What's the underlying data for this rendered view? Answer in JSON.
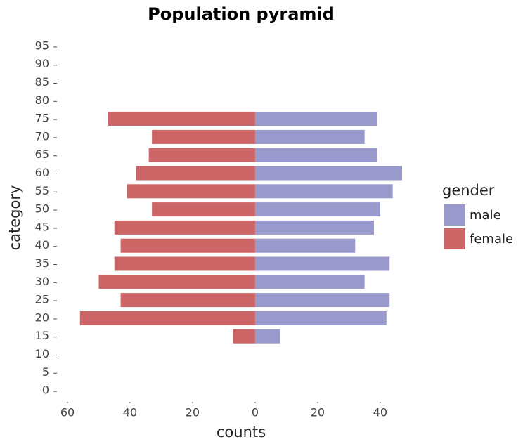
{
  "chart_data": {
    "type": "bar",
    "orientation": "horizontal",
    "title": "Population pyramid",
    "x_label": "counts",
    "y_label": "category",
    "legend_title": "gender",
    "categories": [
      "0",
      "5",
      "10",
      "15",
      "20",
      "25",
      "30",
      "35",
      "40",
      "45",
      "50",
      "55",
      "60",
      "65",
      "70",
      "75",
      "80",
      "85",
      "90",
      "95"
    ],
    "series": [
      {
        "name": "male",
        "color": "#9999cc",
        "values": [
          null,
          null,
          null,
          8,
          42,
          43,
          35,
          43,
          32,
          38,
          40,
          44,
          47,
          39,
          35,
          39,
          null,
          null,
          null,
          null
        ]
      },
      {
        "name": "female",
        "color": "#cc6666",
        "values": [
          null,
          null,
          null,
          -7,
          -56,
          -43,
          -50,
          -45,
          -43,
          -45,
          -33,
          -41,
          -38,
          -34,
          -33,
          -47,
          null,
          null,
          null,
          null
        ]
      }
    ],
    "xlim": [
      -60,
      47
    ],
    "xticks": [
      {
        "value": -60,
        "label": "60"
      },
      {
        "value": -40,
        "label": "40"
      },
      {
        "value": -20,
        "label": "20"
      },
      0,
      20,
      40
    ],
    "grid": false
  }
}
